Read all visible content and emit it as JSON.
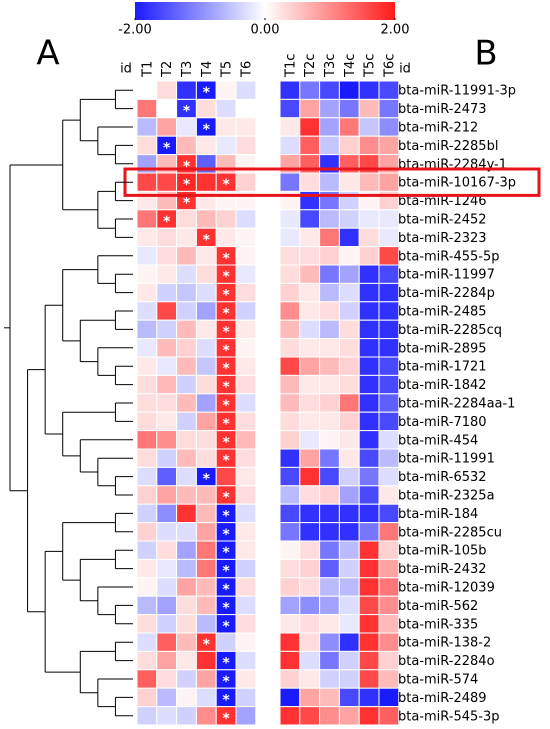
{
  "chart_data": {
    "type": "heatmap",
    "panels": [
      "A",
      "B"
    ],
    "id_label": "id",
    "columns": [
      "T1",
      "T2",
      "T3",
      "T4",
      "T5",
      "T6"
    ],
    "control_columns": [
      "T1c",
      "T2c",
      "T3c",
      "T4c",
      "T5c",
      "T6c"
    ],
    "rows": [
      "bta-miR-11991-3p",
      "bta-miR-2473",
      "bta-miR-212",
      "bta-miR-2285bl",
      "bta-miR-2284y-1",
      "bta-miR-10167-3p",
      "bta-miR-1246",
      "bta-miR-2452",
      "bta-miR-2323",
      "bta-miR-455-5p",
      "bta-miR-11997",
      "bta-miR-2284p",
      "bta-miR-2485",
      "bta-miR-2285cq",
      "bta-miR-2895",
      "bta-miR-1721",
      "bta-miR-1842",
      "bta-miR-2284aa-1",
      "bta-miR-7180",
      "bta-miR-454",
      "bta-miR-11991",
      "bta-miR-6532",
      "bta-miR-2325a",
      "bta-miR-184",
      "bta-miR-2285cu",
      "bta-miR-105b",
      "bta-miR-2432",
      "bta-miR-12039",
      "bta-miR-562",
      "bta-miR-335",
      "bta-miR-138-2",
      "bta-miR-2284o",
      "bta-miR-574",
      "bta-miR-2489",
      "bta-miR-545-3p"
    ],
    "values": [
      [
        0,
        0.3,
        -1.8,
        -2,
        0.1,
        -0.3
      ],
      [
        1.2,
        0,
        -1.8,
        0.3,
        -0.3,
        0
      ],
      [
        -0.6,
        0.8,
        -0.2,
        -2,
        0.2,
        0.2
      ],
      [
        0.3,
        -2,
        0.6,
        0.2,
        -0.2,
        0.3
      ],
      [
        -0.8,
        0.6,
        1.8,
        -1.4,
        0.6,
        0.1
      ],
      [
        1.6,
        1.6,
        1.9,
        1.8,
        1.8,
        0.4
      ],
      [
        0.2,
        0.6,
        1.8,
        0.2,
        0.1,
        0.1
      ],
      [
        1.2,
        1.8,
        0.3,
        0.6,
        0.4,
        -0.3
      ],
      [
        0.2,
        0.3,
        0.2,
        1.8,
        0.2,
        0.1
      ],
      [
        -0.2,
        0.3,
        0.6,
        0.2,
        1.8,
        0.1
      ],
      [
        0.1,
        0.2,
        -0.3,
        0.3,
        1.8,
        -0.2
      ],
      [
        0.2,
        -0.4,
        -0.5,
        -0.3,
        1.8,
        0.3
      ],
      [
        -0.3,
        1.6,
        -0.4,
        -0.8,
        1.8,
        -0.4
      ],
      [
        -0.6,
        -0.4,
        0.6,
        0.2,
        1.8,
        0.2
      ],
      [
        -0.2,
        0.6,
        0.4,
        -0.3,
        1.8,
        0.1
      ],
      [
        0.2,
        -0.2,
        0.6,
        -0.5,
        1.8,
        0.2
      ],
      [
        0.3,
        0.6,
        -0.4,
        0.3,
        1.8,
        0.3
      ],
      [
        0.3,
        0.3,
        0.6,
        -0.8,
        1.8,
        -0.3
      ],
      [
        0.3,
        0.2,
        -0.4,
        0.8,
        1.8,
        0.3
      ],
      [
        1.2,
        1,
        0.3,
        0.3,
        1.8,
        0.6
      ],
      [
        0.3,
        -0.4,
        0.6,
        0.3,
        1.8,
        0.3
      ],
      [
        -0.3,
        -1.4,
        -0.3,
        -2,
        1.6,
        0.2
      ],
      [
        0.4,
        0.8,
        0.6,
        0.6,
        1.8,
        0.3
      ],
      [
        -0.4,
        -1,
        1.8,
        0.6,
        -2,
        -0.3
      ],
      [
        0.4,
        -0.3,
        -0.3,
        0.8,
        -2,
        0.2
      ],
      [
        -0.4,
        0.3,
        -0.8,
        1.2,
        -2,
        0.2
      ],
      [
        0.2,
        -0.2,
        -0.6,
        1.2,
        -2,
        -0.4
      ],
      [
        0.1,
        -0.3,
        0.8,
        0.6,
        -2,
        0.3
      ],
      [
        -0.6,
        -0.8,
        0.3,
        0.6,
        -2,
        -0.3
      ],
      [
        0.3,
        -0.4,
        0.3,
        -0.6,
        -2,
        0.3
      ],
      [
        -0.3,
        1.4,
        0.6,
        1.8,
        -0.4,
        0.1
      ],
      [
        0.3,
        0.8,
        0.2,
        1.8,
        -2,
        -0.3
      ],
      [
        1.4,
        0.3,
        -0.4,
        0.8,
        -2,
        0.2
      ],
      [
        0.4,
        -0.6,
        0.1,
        -0.3,
        -2,
        -0.4
      ],
      [
        -0.4,
        -0.3,
        -0.4,
        1,
        1.8,
        -0.8
      ]
    ],
    "control_values": [
      [
        -1.8,
        -1.2,
        -1.6,
        -2,
        -1.8,
        -1.6
      ],
      [
        -1.6,
        0.8,
        -0.8,
        -1.2,
        0.6,
        -1.2
      ],
      [
        0.2,
        1.8,
        -0.8,
        1.2,
        -0.5,
        -1
      ],
      [
        -0.3,
        1.4,
        -0.5,
        0.4,
        1,
        0.8
      ],
      [
        0.8,
        1.4,
        -1.8,
        1.4,
        1.6,
        0.8
      ],
      [
        -1.2,
        0.3,
        -0.6,
        0.2,
        0.6,
        0.8
      ],
      [
        0.1,
        -1.8,
        -1.2,
        -0.4,
        0.1,
        0.4
      ],
      [
        -0.2,
        -1.6,
        -0.6,
        -0.4,
        -0.2,
        -0.2
      ],
      [
        -0.2,
        0.2,
        1.2,
        -1.8,
        0.3,
        -0.2
      ],
      [
        0.3,
        0.3,
        0.4,
        0.1,
        0.4,
        1.6
      ],
      [
        0.3,
        0.6,
        -1.2,
        -0.8,
        -1.8,
        -1.6
      ],
      [
        0.4,
        0.2,
        -0.6,
        -0.3,
        -1.8,
        -1.8
      ],
      [
        1,
        0.2,
        0.3,
        -0.4,
        -1.8,
        -1.8
      ],
      [
        0.6,
        -0.3,
        -0.6,
        0.3,
        -1.8,
        -1.8
      ],
      [
        0.3,
        0.2,
        0.2,
        0.3,
        -1.8,
        -1.8
      ],
      [
        1.6,
        0.8,
        0.6,
        0.4,
        -1.8,
        -1.6
      ],
      [
        0.6,
        0.2,
        0.2,
        0.3,
        -1.8,
        -1.6
      ],
      [
        0.6,
        0.3,
        0.4,
        1.2,
        -1.8,
        -1.4
      ],
      [
        0.3,
        0.2,
        0.2,
        0.4,
        -1.8,
        -1.6
      ],
      [
        0.4,
        -0.2,
        0.1,
        0.2,
        -1.8,
        -0.3
      ],
      [
        -1.8,
        0.8,
        -1.2,
        0.2,
        -1.6,
        -0.6
      ],
      [
        -1.6,
        1.8,
        -1.6,
        -0.4,
        -1.2,
        -0.3
      ],
      [
        -0.6,
        0.3,
        0.4,
        -0.8,
        -1.6,
        0.2
      ],
      [
        -1.6,
        -1.8,
        -1.8,
        -1.8,
        -1.8,
        -1.6
      ],
      [
        -1.2,
        -1.8,
        -1.8,
        -1.8,
        -1.2,
        1.2
      ],
      [
        0.1,
        0.3,
        -1.2,
        -0.6,
        1.8,
        0.4
      ],
      [
        0.3,
        0.4,
        -1.4,
        -0.4,
        1.8,
        0.8
      ],
      [
        0.4,
        0.3,
        -0.6,
        -0.6,
        1.8,
        1.2
      ],
      [
        -0.8,
        -1,
        -0.8,
        -0.3,
        1.6,
        1
      ],
      [
        0.2,
        0.3,
        0.2,
        -0.2,
        1.8,
        0.6
      ],
      [
        1.8,
        0.3,
        -1,
        -1.8,
        1.8,
        1
      ],
      [
        1.8,
        -0.3,
        -1.2,
        -0.4,
        1.6,
        0.4
      ],
      [
        0.4,
        0.2,
        -0.4,
        -0.4,
        1.6,
        0.6
      ],
      [
        -2,
        0.8,
        0.6,
        -1.6,
        -1.8,
        -2
      ],
      [
        1.8,
        1.6,
        1,
        0.8,
        1.8,
        1.4
      ]
    ],
    "markers": [
      {
        "row": 0,
        "column": 3,
        "label": "*"
      },
      {
        "row": 1,
        "column": 2,
        "label": "*"
      },
      {
        "row": 2,
        "column": 3,
        "label": "*"
      },
      {
        "row": 3,
        "column": 1,
        "label": "*"
      },
      {
        "row": 4,
        "column": 2,
        "label": "*"
      },
      {
        "row": 5,
        "column": 2,
        "label": "*"
      },
      {
        "row": 5,
        "column": 4,
        "label": "*"
      },
      {
        "row": 6,
        "column": 2,
        "label": "*"
      },
      {
        "row": 7,
        "column": 1,
        "label": "*"
      },
      {
        "row": 8,
        "column": 3,
        "label": "*"
      },
      {
        "row": 9,
        "column": 4,
        "label": "*"
      },
      {
        "row": 10,
        "column": 4,
        "label": "*"
      },
      {
        "row": 11,
        "column": 4,
        "label": "*"
      },
      {
        "row": 12,
        "column": 4,
        "label": "*"
      },
      {
        "row": 13,
        "column": 4,
        "label": "*"
      },
      {
        "row": 14,
        "column": 4,
        "label": "*"
      },
      {
        "row": 15,
        "column": 4,
        "label": "*"
      },
      {
        "row": 16,
        "column": 4,
        "label": "*"
      },
      {
        "row": 17,
        "column": 4,
        "label": "*"
      },
      {
        "row": 18,
        "column": 4,
        "label": "*"
      },
      {
        "row": 19,
        "column": 4,
        "label": "*"
      },
      {
        "row": 20,
        "column": 4,
        "label": "*"
      },
      {
        "row": 21,
        "column": 3,
        "label": "*"
      },
      {
        "row": 22,
        "column": 4,
        "label": "*"
      },
      {
        "row": 23,
        "column": 4,
        "label": "*"
      },
      {
        "row": 24,
        "column": 4,
        "label": "*"
      },
      {
        "row": 25,
        "column": 4,
        "label": "*"
      },
      {
        "row": 26,
        "column": 4,
        "label": "*"
      },
      {
        "row": 27,
        "column": 4,
        "label": "*"
      },
      {
        "row": 28,
        "column": 4,
        "label": "*"
      },
      {
        "row": 29,
        "column": 4,
        "label": "*"
      },
      {
        "row": 30,
        "column": 3,
        "label": "*"
      },
      {
        "row": 31,
        "column": 4,
        "label": "*"
      },
      {
        "row": 32,
        "column": 4,
        "label": "*"
      },
      {
        "row": 33,
        "column": 4,
        "label": "*"
      },
      {
        "row": 34,
        "column": 4,
        "label": "*"
      }
    ],
    "highlight_row": 5,
    "colorbar": {
      "colors": [
        "#1a1aff",
        "#ffffff",
        "#ff1a1a"
      ],
      "lim": [
        -2,
        2
      ],
      "ticks": [
        {
          "value": -2,
          "label": "-2.00"
        },
        {
          "value": 0,
          "label": "0.00"
        },
        {
          "value": 2,
          "label": "2.00"
        }
      ]
    }
  }
}
